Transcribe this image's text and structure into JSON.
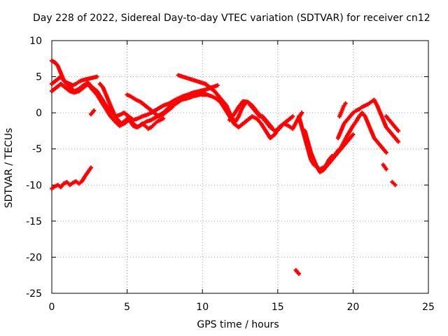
{
  "chart_data": {
    "type": "scatter",
    "title": "Day 228 of 2022, Sidereal Day-to-day VTEC variation (SDTVAR) for receiver cn12",
    "xlabel": "GPS time / hours",
    "ylabel": "SDTVAR / TECUs",
    "xlim": [
      0,
      25
    ],
    "ylim": [
      -25,
      10
    ],
    "xticks": [
      "0",
      "5",
      "10",
      "15",
      "20",
      "25"
    ],
    "yticks": [
      "10",
      "5",
      "0",
      "-5",
      "-10",
      "-15",
      "-20",
      "-25"
    ],
    "grid": true,
    "series_color": "#ff0000",
    "series": [
      {
        "name": "s1",
        "x": [
          0.0,
          0.2,
          0.4,
          0.6,
          0.8,
          1.0,
          1.2,
          1.4,
          1.6,
          1.8,
          2.0,
          2.2,
          2.4,
          2.6,
          2.8,
          3.0
        ],
        "y": [
          7.2,
          7.0,
          6.5,
          5.5,
          4.5,
          4.2,
          4.0,
          3.8,
          4.0,
          4.3,
          4.5,
          4.6,
          4.7,
          4.8,
          4.9,
          5.0
        ]
      },
      {
        "name": "s2",
        "x": [
          0.0,
          0.3,
          0.6,
          0.9,
          1.2,
          1.5,
          1.8,
          2.1,
          2.4,
          2.7,
          3.0,
          3.3,
          3.6,
          3.9,
          4.2,
          4.5,
          4.8,
          5.1,
          5.4,
          5.7,
          6.0,
          6.3,
          6.6,
          7.0,
          7.4,
          7.8,
          8.2,
          8.6,
          9.0,
          9.4,
          9.8,
          10.2,
          10.6,
          11.0
        ],
        "y": [
          4.0,
          4.5,
          5.0,
          4.2,
          3.5,
          3.0,
          3.3,
          3.8,
          4.2,
          3.5,
          3.0,
          2.0,
          1.0,
          0.2,
          -0.5,
          -0.3,
          0.0,
          -0.5,
          -1.0,
          -0.8,
          -0.5,
          -0.3,
          0.0,
          0.5,
          1.0,
          1.3,
          1.8,
          2.2,
          2.5,
          2.8,
          3.0,
          3.2,
          3.5,
          3.8
        ]
      },
      {
        "name": "s3",
        "x": [
          0.0,
          0.3,
          0.6,
          0.9,
          1.2,
          1.5,
          1.8,
          2.1,
          2.4,
          2.7,
          3.0,
          3.3,
          3.6,
          3.9,
          4.2,
          4.5,
          4.8,
          5.1,
          5.4,
          5.7,
          6.0,
          6.3,
          6.6,
          7.0,
          7.4,
          7.8,
          8.2,
          8.6,
          9.0,
          9.4,
          9.8,
          10.2
        ],
        "y": [
          3.0,
          3.5,
          4.0,
          3.5,
          3.0,
          2.8,
          3.0,
          3.5,
          4.0,
          3.2,
          2.5,
          1.5,
          0.5,
          -0.5,
          -1.2,
          -1.8,
          -1.5,
          -1.0,
          -1.5,
          -2.0,
          -1.6,
          -1.2,
          -1.0,
          -0.5,
          0.0,
          0.8,
          1.2,
          1.8,
          2.0,
          2.3,
          2.5,
          2.7
        ]
      },
      {
        "name": "s4",
        "x": [
          5.0,
          5.3,
          5.6,
          5.9,
          6.2,
          6.5,
          6.8,
          7.1,
          7.4,
          7.7,
          8.0
        ],
        "y": [
          2.5,
          2.2,
          1.8,
          1.5,
          1.0,
          0.5,
          0.0,
          -0.5,
          -0.2,
          0.3,
          0.8
        ]
      },
      {
        "name": "s5",
        "x": [
          3.2,
          3.4,
          3.6,
          3.8,
          4.0,
          4.2,
          4.4,
          4.6,
          4.8,
          5.0,
          5.2,
          5.4,
          5.6,
          5.8,
          6.0,
          6.2,
          6.4,
          6.6,
          6.8,
          7.0,
          7.2,
          7.4
        ],
        "y": [
          4.0,
          3.5,
          2.5,
          1.5,
          0.5,
          -0.5,
          -1.0,
          -1.5,
          -1.2,
          -0.8,
          -1.2,
          -1.8,
          -2.0,
          -1.8,
          -1.5,
          -1.8,
          -2.2,
          -2.0,
          -1.6,
          -1.2,
          -1.0,
          -0.8
        ]
      },
      {
        "name": "s6",
        "x": [
          8.4,
          8.7,
          9.0,
          9.3,
          9.6,
          9.9,
          10.2,
          10.5,
          10.8,
          11.0,
          11.2,
          11.4,
          11.6,
          11.8,
          12.0,
          12.2,
          12.4,
          12.6,
          12.8,
          13.0,
          13.2,
          13.4,
          13.6,
          13.8,
          14.0,
          14.2,
          14.4,
          14.6
        ],
        "y": [
          5.2,
          5.0,
          4.8,
          4.6,
          4.4,
          4.2,
          4.0,
          3.5,
          3.0,
          2.5,
          2.0,
          1.5,
          1.0,
          0.0,
          -0.8,
          -1.2,
          -0.5,
          0.5,
          1.2,
          1.5,
          1.0,
          0.5,
          0.0,
          -0.5,
          -0.5,
          -1.0,
          -1.5,
          -2.0
        ]
      },
      {
        "name": "s7",
        "x": [
          10.0,
          10.3,
          10.6,
          10.9,
          11.2,
          11.5,
          11.8,
          12.1,
          12.4,
          12.7,
          13.0,
          13.3,
          13.6,
          13.9,
          14.2,
          14.5,
          14.8,
          15.1,
          15.4,
          15.7,
          16.0,
          16.3,
          16.6
        ],
        "y": [
          2.5,
          2.5,
          2.3,
          2.0,
          1.5,
          0.5,
          -0.5,
          -1.5,
          -2.0,
          -1.5,
          -1.0,
          -0.5,
          -0.8,
          -1.5,
          -2.5,
          -3.5,
          -3.0,
          -2.0,
          -1.5,
          -1.8,
          -2.2,
          -1.0,
          0.0
        ]
      },
      {
        "name": "s8",
        "x": [
          11.8,
          12.1,
          12.4,
          12.7,
          13.0,
          13.3,
          13.6,
          13.9,
          14.2,
          14.5,
          14.8,
          15.1,
          15.4,
          15.7,
          16.0
        ],
        "y": [
          -1.0,
          -0.2,
          0.8,
          1.6,
          1.5,
          1.0,
          0.2,
          -0.5,
          -1.2,
          -2.0,
          -2.5,
          -2.2,
          -1.5,
          -1.0,
          -0.5
        ]
      },
      {
        "name": "s9",
        "x": [
          16.4,
          16.6,
          16.8,
          17.0,
          17.2,
          17.4,
          17.6,
          17.8,
          18.0,
          18.2,
          18.4,
          18.6
        ],
        "y": [
          -0.5,
          -2.0,
          -3.5,
          -5.0,
          -6.5,
          -7.2,
          -7.5,
          -7.8,
          -7.6,
          -7.3,
          -6.5,
          -6.0
        ]
      },
      {
        "name": "s10",
        "x": [
          16.8,
          17.0,
          17.2,
          17.4,
          17.6,
          17.8,
          18.0,
          18.2,
          18.4,
          18.6,
          18.8,
          19.0,
          19.2,
          19.4,
          19.6,
          19.8,
          20.0
        ],
        "y": [
          -2.5,
          -4.0,
          -5.5,
          -6.5,
          -7.5,
          -8.2,
          -8.0,
          -7.5,
          -7.0,
          -6.5,
          -6.0,
          -5.5,
          -5.0,
          -4.5,
          -4.0,
          -3.5,
          -3.0
        ]
      },
      {
        "name": "s11",
        "x": [
          19.0,
          19.2,
          19.4,
          19.6,
          19.8,
          20.0,
          20.2,
          20.4,
          20.6,
          20.8,
          21.0,
          21.2,
          21.4,
          21.6,
          21.8,
          22.0,
          22.2,
          22.4,
          22.6,
          22.8,
          23.0
        ],
        "y": [
          -3.5,
          -2.5,
          -1.5,
          -1.0,
          -0.5,
          0.0,
          0.3,
          0.5,
          0.8,
          1.0,
          1.2,
          1.5,
          1.8,
          1.0,
          0.0,
          -1.0,
          -2.0,
          -2.5,
          -3.0,
          -3.5,
          -4.0
        ]
      },
      {
        "name": "s12",
        "x": [
          18.4,
          18.6,
          18.8,
          19.0,
          19.2,
          19.4,
          19.6,
          19.8,
          20.0,
          20.2,
          20.4,
          20.6,
          20.8,
          21.0,
          21.2,
          21.4,
          21.6,
          21.8,
          22.0,
          22.2
        ],
        "y": [
          -7.0,
          -6.5,
          -5.8,
          -5.2,
          -4.8,
          -4.0,
          -3.2,
          -2.5,
          -1.8,
          -1.2,
          -0.5,
          0.0,
          -0.5,
          -1.5,
          -2.5,
          -3.5,
          -4.0,
          -4.5,
          -5.0,
          -5.5
        ]
      },
      {
        "name": "s13",
        "x": [
          22.2,
          22.4,
          22.6,
          22.8,
          23.0
        ],
        "y": [
          -0.5,
          -1.0,
          -1.5,
          -2.0,
          -2.5
        ]
      },
      {
        "name": "s14",
        "x": [
          19.1,
          19.2,
          19.3,
          19.4,
          19.5
        ],
        "y": [
          -0.5,
          0.0,
          0.5,
          1.0,
          1.3
        ]
      },
      {
        "name": "s15",
        "x": [
          0.0,
          0.2,
          0.4,
          0.6,
          0.8,
          1.0,
          1.2,
          1.4,
          1.6,
          1.8,
          2.0,
          2.2,
          2.4,
          2.6
        ],
        "y": [
          -10.5,
          -10.2,
          -10.0,
          -10.3,
          -9.8,
          -9.6,
          -10.0,
          -9.7,
          -9.5,
          -9.8,
          -9.5,
          -8.8,
          -8.2,
          -7.6
        ]
      },
      {
        "name": "s16",
        "x": [
          22.0,
          22.2
        ],
        "y": [
          -7.2,
          -7.8
        ]
      },
      {
        "name": "s17",
        "x": [
          22.6,
          22.8
        ],
        "y": [
          -9.6,
          -10.0
        ]
      },
      {
        "name": "s18",
        "x": [
          16.2,
          16.4
        ],
        "y": [
          -21.8,
          -22.3
        ]
      },
      {
        "name": "s19",
        "x": [
          2.6,
          2.8
        ],
        "y": [
          -0.2,
          0.3
        ]
      }
    ]
  }
}
